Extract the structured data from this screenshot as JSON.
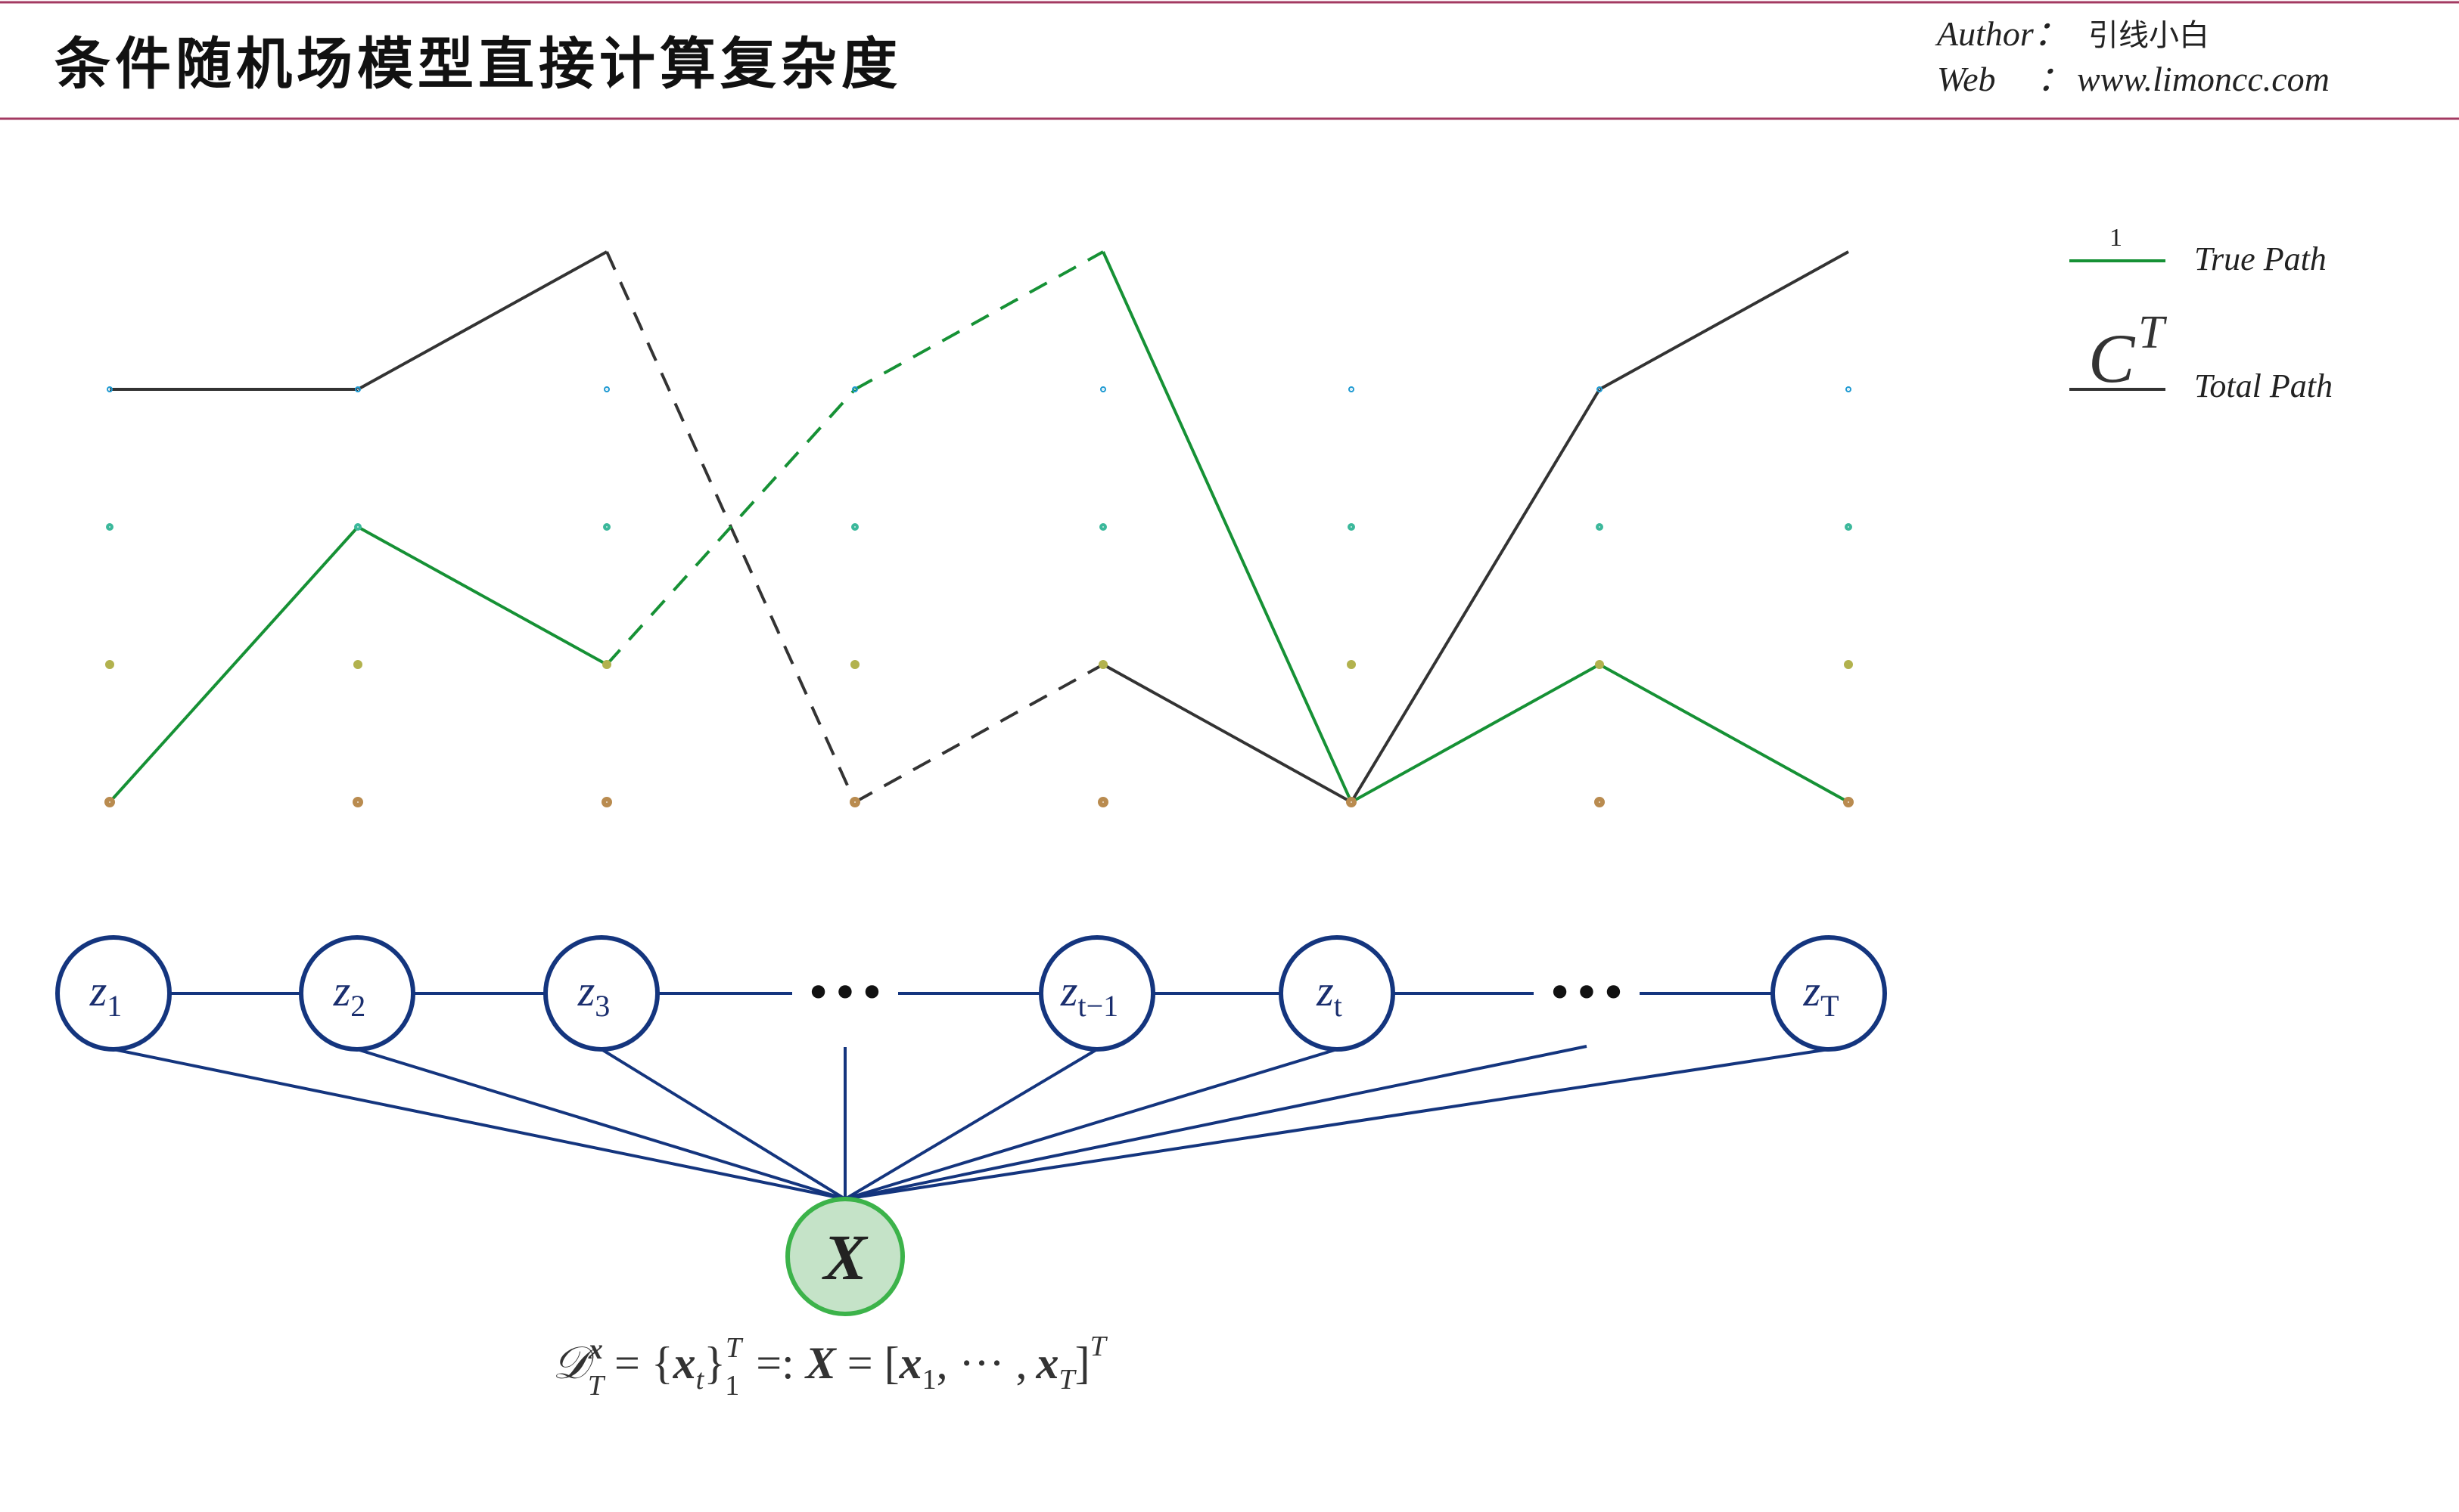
{
  "header": {
    "title": "条件随机场模型直接计算复杂度",
    "author_label": "Author：",
    "author_value": "引线小白",
    "web_label": "Web",
    "web_sep": "：",
    "web_value": "www.limoncc.com"
  },
  "legend": {
    "true_path_count": "1",
    "true_path_label": "True Path",
    "total_path_symbol": "C",
    "total_path_exponent": "T",
    "total_path_label": "Total Path"
  },
  "state_rows": [
    {
      "fill": "#e8bcc9",
      "stroke": "#b5204f"
    },
    {
      "fill": "#cfe7f6",
      "stroke": "#1f9ad2"
    },
    {
      "fill": "#d2ece5",
      "stroke": "#3bb89b"
    },
    {
      "fill": "#e7e8d7",
      "stroke": "#b2b24e"
    },
    {
      "fill": "#ebe1d3",
      "stroke": "#b98b4f"
    }
  ],
  "colors": {
    "true_path": "#169135",
    "other_path": "#333333",
    "chain": "#14357e",
    "x_fill": "#c5e3c8",
    "x_stroke": "#3cb34a",
    "header_rule": "#a33a62"
  },
  "paths": {
    "true_path": [
      4,
      2,
      3,
      1,
      0,
      4,
      3,
      4
    ],
    "other_path": [
      1,
      1,
      0,
      4,
      3,
      4,
      1,
      0
    ]
  },
  "chain": {
    "nodes": [
      {
        "base": "z",
        "sub": "1"
      },
      {
        "base": "z",
        "sub": "2"
      },
      {
        "base": "z",
        "sub": "3"
      },
      {
        "base": "",
        "sub": "",
        "ellipsis": "•••"
      },
      {
        "base": "z",
        "sub": "t−1"
      },
      {
        "base": "z",
        "sub": "t"
      },
      {
        "base": "",
        "sub": "",
        "ellipsis": "•••"
      },
      {
        "base": "z",
        "sub": "T"
      }
    ],
    "observed": "X"
  },
  "formula": "𝒟ₜˣ = {xₜ}₁ᵀ =: X = [x₁, ··· , xT]ᵀ",
  "formula_parts": {
    "d": "𝒟",
    "d_sup": "x",
    "d_sub": "T",
    "eq1": "= {",
    "x_t": "x",
    "t_sub": "t",
    "brace_close": "}",
    "brace_sup": "T",
    "brace_sub": "1",
    "eq2": "=: ",
    "X": "X",
    "eq3": " = [",
    "x1": "x",
    "x1_sub": "1",
    "dots": ", ··· ,",
    "xT": "x",
    "xT_sub": "T",
    "close": "]",
    "close_sup": "T"
  }
}
